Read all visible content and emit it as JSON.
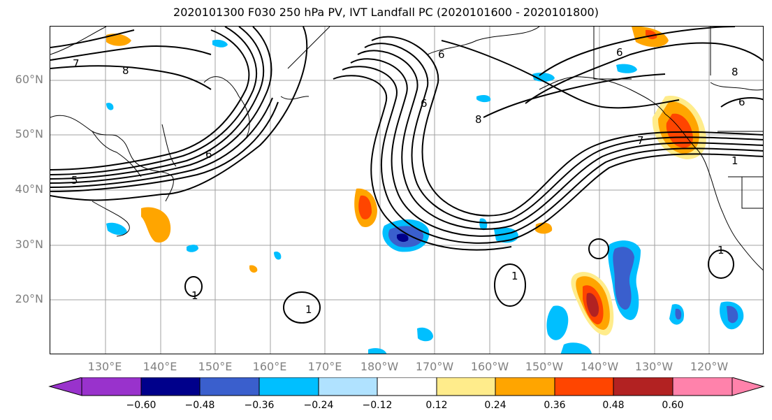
{
  "title": "2020101300 F030 250 hPa PV, IVT Landfall PC (2020101600 - 2020101800)",
  "axes": {
    "lat_labels": [
      "60°N",
      "50°N",
      "40°N",
      "30°N",
      "20°N"
    ],
    "lon_labels": [
      "130°E",
      "140°E",
      "150°E",
      "160°E",
      "170°E",
      "180°W",
      "170°W",
      "160°W",
      "150°W",
      "140°W",
      "130°W",
      "120°W"
    ]
  },
  "colorbar": {
    "ticks": [
      "−0.60",
      "−0.48",
      "−0.36",
      "−0.24",
      "−0.12",
      "0.12",
      "0.24",
      "0.36",
      "0.48",
      "0.60"
    ],
    "colors": [
      "#9932cc",
      "#00008b",
      "#3a5fcd",
      "#00bfff",
      "#b0e2ff",
      "#ffffff",
      "#ffec8b",
      "#ffa500",
      "#ff4500",
      "#b22222",
      "#ff82ab"
    ]
  },
  "contour_labels": [
    "7",
    "8",
    "5",
    "6",
    "6",
    "6",
    "7",
    "8",
    "1",
    "1",
    "1",
    "1",
    "1",
    "6",
    "6",
    "8"
  ]
}
